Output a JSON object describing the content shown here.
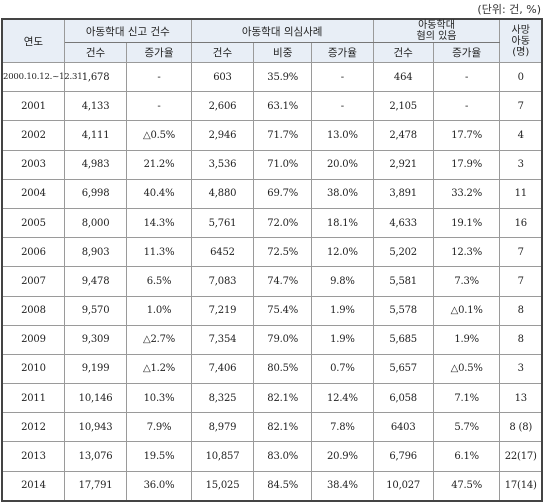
{
  "unit_note": "(단위: 건, %)",
  "headers": {
    "year": "연도",
    "group_reports": "아동학대 신고 건수",
    "group_suspected": "아동학대 의심사례",
    "group_confirmed_l1": "아동학대",
    "group_confirmed_l2": "혐의 있음",
    "deaths_l1": "사망",
    "deaths_l2": "아동",
    "deaths_l3": "(명)",
    "count": "건수",
    "growth": "증가율",
    "count2": "건수",
    "share": "비중",
    "growth2": "증가율",
    "count3": "건수",
    "growth3": "증가율"
  },
  "rows": [
    {
      "year": "2000.10.12.~12.31",
      "reports": "1,678",
      "reports_growth": "-",
      "suspected": "603",
      "share": "35.9%",
      "suspected_growth": "-",
      "confirmed": "464",
      "confirmed_growth": "-",
      "deaths": "0"
    },
    {
      "year": "2001",
      "reports": "4,133",
      "reports_growth": "-",
      "suspected": "2,606",
      "share": "63.1%",
      "suspected_growth": "-",
      "confirmed": "2,105",
      "confirmed_growth": "-",
      "deaths": "7"
    },
    {
      "year": "2002",
      "reports": "4,111",
      "reports_growth": "△0.5%",
      "suspected": "2,946",
      "share": "71.7%",
      "suspected_growth": "13.0%",
      "confirmed": "2,478",
      "confirmed_growth": "17.7%",
      "deaths": "4"
    },
    {
      "year": "2003",
      "reports": "4,983",
      "reports_growth": "21.2%",
      "suspected": "3,536",
      "share": "71.0%",
      "suspected_growth": "20.0%",
      "confirmed": "2,921",
      "confirmed_growth": "17.9%",
      "deaths": "3"
    },
    {
      "year": "2004",
      "reports": "6,998",
      "reports_growth": "40.4%",
      "suspected": "4,880",
      "share": "69.7%",
      "suspected_growth": "38.0%",
      "confirmed": "3,891",
      "confirmed_growth": "33.2%",
      "deaths": "11"
    },
    {
      "year": "2005",
      "reports": "8,000",
      "reports_growth": "14.3%",
      "suspected": "5,761",
      "share": "72.0%",
      "suspected_growth": "18.1%",
      "confirmed": "4,633",
      "confirmed_growth": "19.1%",
      "deaths": "16"
    },
    {
      "year": "2006",
      "reports": "8,903",
      "reports_growth": "11.3%",
      "suspected": "6452",
      "share": "72.5%",
      "suspected_growth": "12.0%",
      "confirmed": "5,202",
      "confirmed_growth": "12.3%",
      "deaths": "7"
    },
    {
      "year": "2007",
      "reports": "9,478",
      "reports_growth": "6.5%",
      "suspected": "7,083",
      "share": "74.7%",
      "suspected_growth": "9.8%",
      "confirmed": "5,581",
      "confirmed_growth": "7.3%",
      "deaths": "7"
    },
    {
      "year": "2008",
      "reports": "9,570",
      "reports_growth": "1.0%",
      "suspected": "7,219",
      "share": "75.4%",
      "suspected_growth": "1.9%",
      "confirmed": "5,578",
      "confirmed_growth": "△0.1%",
      "deaths": "8"
    },
    {
      "year": "2009",
      "reports": "9,309",
      "reports_growth": "△2.7%",
      "suspected": "7,354",
      "share": "79.0%",
      "suspected_growth": "1.9%",
      "confirmed": "5,685",
      "confirmed_growth": "1.9%",
      "deaths": "8"
    },
    {
      "year": "2010",
      "reports": "9,199",
      "reports_growth": "△1.2%",
      "suspected": "7,406",
      "share": "80.5%",
      "suspected_growth": "0.7%",
      "confirmed": "5,657",
      "confirmed_growth": "△0.5%",
      "deaths": "3"
    },
    {
      "year": "2011",
      "reports": "10,146",
      "reports_growth": "10.3%",
      "suspected": "8,325",
      "share": "82.1%",
      "suspected_growth": "12.4%",
      "confirmed": "6,058",
      "confirmed_growth": "7.1%",
      "deaths": "13"
    },
    {
      "year": "2012",
      "reports": "10,943",
      "reports_growth": "7.9%",
      "suspected": "8,979",
      "share": "82.1%",
      "suspected_growth": "7.8%",
      "confirmed": "6403",
      "confirmed_growth": "5.7%",
      "deaths": "8 (8)"
    },
    {
      "year": "2013",
      "reports": "13,076",
      "reports_growth": "19.5%",
      "suspected": "10,857",
      "share": "83.0%",
      "suspected_growth": "20.9%",
      "confirmed": "6,796",
      "confirmed_growth": "6.1%",
      "deaths": "22(17)"
    },
    {
      "year": "2014",
      "reports": "17,791",
      "reports_growth": "36.0%",
      "suspected": "15,025",
      "share": "84.5%",
      "suspected_growth": "38.4%",
      "confirmed": "10,027",
      "confirmed_growth": "47.5%",
      "deaths": "17(14)"
    }
  ]
}
